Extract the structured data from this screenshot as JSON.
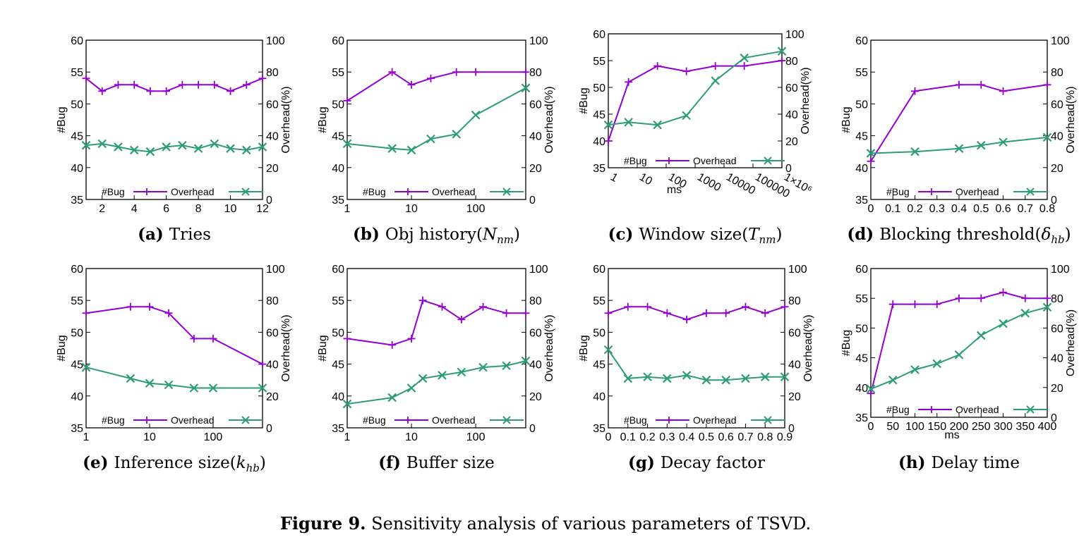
{
  "colors": {
    "bug": "#9400d3",
    "overhead": "#2e9c7a",
    "axis": "#000000"
  },
  "figure_caption": {
    "label": "Figure 9.",
    "text": "Sensitivity analysis of various parameters of TSVD."
  },
  "legend": {
    "bug": "#Bug",
    "overhead": "Overhead"
  },
  "ylabel_left": "#Bug",
  "ylabel_right": "Overhead(%)",
  "chart_data": [
    {
      "id": "a",
      "type": "line",
      "caption_label": "(a)",
      "caption": "Tries",
      "xscale": "linear",
      "xlim": [
        1,
        12
      ],
      "xticks": [
        "2",
        "4",
        "6",
        "8",
        "10",
        "12"
      ],
      "xtick_values": [
        2,
        4,
        6,
        8,
        10,
        12
      ],
      "ylim_left": [
        35,
        60
      ],
      "ylim_right": [
        0,
        100
      ],
      "yticks_left": [
        "35",
        "40",
        "45",
        "50",
        "55",
        "60"
      ],
      "yticks_right": [
        "0",
        "20",
        "40",
        "60",
        "80",
        "100"
      ],
      "series": [
        {
          "name": "#Bug",
          "axis": "left",
          "x": [
            1,
            2,
            3,
            4,
            5,
            6,
            7,
            8,
            9,
            10,
            11,
            12
          ],
          "y": [
            54,
            52,
            53,
            53,
            52,
            52,
            53,
            53,
            53,
            52,
            53,
            54
          ]
        },
        {
          "name": "Overhead",
          "axis": "right",
          "x": [
            1,
            2,
            3,
            4,
            5,
            6,
            7,
            8,
            9,
            10,
            11,
            12
          ],
          "y": [
            34,
            35,
            33,
            31,
            30,
            33,
            34,
            32,
            35,
            32,
            31,
            33
          ]
        }
      ]
    },
    {
      "id": "b",
      "type": "line",
      "caption_label": "(b)",
      "caption": "Obj history",
      "caption_math": {
        "base": "N",
        "sub": "nm"
      },
      "xscale": "log",
      "xlim": [
        1,
        600
      ],
      "xticks": [
        "1",
        "10",
        "100"
      ],
      "xtick_values": [
        1,
        10,
        100
      ],
      "ylim_left": [
        35,
        60
      ],
      "ylim_right": [
        0,
        100
      ],
      "yticks_left": [
        "35",
        "40",
        "45",
        "50",
        "55",
        "60"
      ],
      "yticks_right": [
        "0",
        "20",
        "40",
        "60",
        "80",
        "100"
      ],
      "series": [
        {
          "name": "#Bug",
          "axis": "left",
          "x": [
            1,
            5,
            10,
            20,
            50,
            100,
            600
          ],
          "y": [
            50.5,
            55,
            53,
            54,
            55,
            55,
            55
          ]
        },
        {
          "name": "Overhead",
          "axis": "right",
          "x": [
            1,
            5,
            10,
            20,
            50,
            100,
            600
          ],
          "y": [
            35,
            32,
            31,
            38,
            41,
            53,
            70
          ]
        }
      ]
    },
    {
      "id": "c",
      "type": "line",
      "caption_label": "(c)",
      "caption": "Window size",
      "caption_math": {
        "base": "T",
        "sub": "nm"
      },
      "xscale": "log",
      "xlim": [
        1,
        1000000
      ],
      "xticks": [
        "1",
        "10",
        "100",
        "1000",
        "10000",
        "100000",
        "1×10⁶"
      ],
      "xtick_values": [
        1,
        10,
        100,
        1000,
        10000,
        100000,
        1000000
      ],
      "xlabel": "ms",
      "ylim_left": [
        35,
        60
      ],
      "ylim_right": [
        0,
        100
      ],
      "yticks_left": [
        "35",
        "40",
        "45",
        "50",
        "55",
        "60"
      ],
      "yticks_right": [
        "0",
        "20",
        "40",
        "60",
        "80",
        "100"
      ],
      "series": [
        {
          "name": "#Bug",
          "axis": "left",
          "x": [
            1,
            5,
            50,
            500,
            5000,
            50000,
            1000000
          ],
          "y": [
            40,
            51,
            54,
            53,
            54,
            54,
            55
          ]
        },
        {
          "name": "Overhead",
          "axis": "right",
          "x": [
            1,
            5,
            50,
            500,
            5000,
            50000,
            1000000
          ],
          "y": [
            32,
            34,
            32,
            39,
            65,
            82,
            87
          ]
        }
      ]
    },
    {
      "id": "d",
      "type": "line",
      "caption_label": "(d)",
      "caption": "Blocking threshold",
      "caption_math": {
        "base": "δ",
        "sub": "hb"
      },
      "xscale": "linear",
      "xlim": [
        0,
        0.8
      ],
      "xticks": [
        "0",
        "0.1",
        "0.2",
        "0.3",
        "0.4",
        "0.5",
        "0.6",
        "0.7",
        "0.8"
      ],
      "xtick_values": [
        0,
        0.1,
        0.2,
        0.3,
        0.4,
        0.5,
        0.6,
        0.7,
        0.8
      ],
      "ylim_left": [
        35,
        60
      ],
      "ylim_right": [
        0,
        100
      ],
      "yticks_left": [
        "35",
        "40",
        "45",
        "50",
        "55",
        "60"
      ],
      "yticks_right": [
        "0",
        "20",
        "40",
        "60",
        "80",
        "100"
      ],
      "series": [
        {
          "name": "#Bug",
          "axis": "left",
          "x": [
            0,
            0.2,
            0.4,
            0.5,
            0.6,
            0.8
          ],
          "y": [
            41,
            52,
            53,
            53,
            52,
            53
          ]
        },
        {
          "name": "Overhead",
          "axis": "right",
          "x": [
            0,
            0.2,
            0.4,
            0.5,
            0.6,
            0.8
          ],
          "y": [
            29,
            30,
            32,
            34,
            36,
            39
          ]
        }
      ]
    },
    {
      "id": "e",
      "type": "line",
      "caption_label": "(e)",
      "caption": "Inference size",
      "caption_math": {
        "base": "k",
        "sub": "hb"
      },
      "xscale": "log",
      "xlim": [
        1,
        600
      ],
      "xticks": [
        "1",
        "10",
        "100"
      ],
      "xtick_values": [
        1,
        10,
        100
      ],
      "ylim_left": [
        35,
        60
      ],
      "ylim_right": [
        0,
        100
      ],
      "yticks_left": [
        "35",
        "40",
        "45",
        "50",
        "55",
        "60"
      ],
      "yticks_right": [
        "0",
        "20",
        "40",
        "60",
        "80",
        "100"
      ],
      "series": [
        {
          "name": "#Bug",
          "axis": "left",
          "x": [
            1,
            5,
            10,
            20,
            50,
            100,
            600
          ],
          "y": [
            53,
            54,
            54,
            53,
            49,
            49,
            45
          ]
        },
        {
          "name": "Overhead",
          "axis": "right",
          "x": [
            1,
            5,
            10,
            20,
            50,
            100,
            600
          ],
          "y": [
            38,
            31,
            28,
            27,
            25,
            25,
            25
          ]
        }
      ]
    },
    {
      "id": "f",
      "type": "line",
      "caption_label": "(f)",
      "caption": "Buffer size",
      "xscale": "log",
      "xlim": [
        1,
        600
      ],
      "xticks": [
        "1",
        "10",
        "100"
      ],
      "xtick_values": [
        1,
        10,
        100
      ],
      "ylim_left": [
        35,
        60
      ],
      "ylim_right": [
        0,
        100
      ],
      "yticks_left": [
        "35",
        "40",
        "45",
        "50",
        "55",
        "60"
      ],
      "yticks_right": [
        "0",
        "20",
        "40",
        "60",
        "80",
        "100"
      ],
      "series": [
        {
          "name": "#Bug",
          "axis": "left",
          "x": [
            1,
            5,
            10,
            15,
            30,
            60,
            130,
            300,
            600
          ],
          "y": [
            49,
            48,
            49,
            55,
            54,
            52,
            54,
            53,
            53
          ]
        },
        {
          "name": "Overhead",
          "axis": "right",
          "x": [
            1,
            5,
            10,
            15,
            30,
            60,
            130,
            300,
            600
          ],
          "y": [
            15,
            19,
            25,
            31,
            33,
            35,
            38,
            39,
            42
          ]
        }
      ]
    },
    {
      "id": "g",
      "type": "line",
      "caption_label": "(g)",
      "caption": "Decay factor",
      "xscale": "linear",
      "xlim": [
        0,
        0.9
      ],
      "xticks": [
        "0",
        "0.1",
        "0.2",
        "0.3",
        "0.4",
        "0.5",
        "0.6",
        "0.7",
        "0.8",
        "0.9"
      ],
      "xtick_values": [
        0,
        0.1,
        0.2,
        0.3,
        0.4,
        0.5,
        0.6,
        0.7,
        0.8,
        0.9
      ],
      "ylim_left": [
        35,
        60
      ],
      "ylim_right": [
        0,
        100
      ],
      "yticks_left": [
        "35",
        "40",
        "45",
        "50",
        "55",
        "60"
      ],
      "yticks_right": [
        "0",
        "20",
        "40",
        "60",
        "80",
        "100"
      ],
      "series": [
        {
          "name": "#Bug",
          "axis": "left",
          "x": [
            0,
            0.1,
            0.2,
            0.3,
            0.4,
            0.5,
            0.6,
            0.7,
            0.8,
            0.9
          ],
          "y": [
            53,
            54,
            54,
            53,
            52,
            53,
            53,
            54,
            53,
            54
          ]
        },
        {
          "name": "Overhead",
          "axis": "right",
          "x": [
            0,
            0.1,
            0.2,
            0.3,
            0.4,
            0.5,
            0.6,
            0.7,
            0.8,
            0.9
          ],
          "y": [
            49,
            31,
            32,
            31,
            33,
            30,
            30,
            31,
            32,
            32
          ]
        }
      ]
    },
    {
      "id": "h",
      "type": "line",
      "caption_label": "(h)",
      "caption": "Delay time",
      "xscale": "linear",
      "xlim": [
        0,
        400
      ],
      "xticks": [
        "0",
        "50",
        "100",
        "150",
        "200",
        "250",
        "300",
        "350",
        "400"
      ],
      "xtick_values": [
        0,
        50,
        100,
        150,
        200,
        250,
        300,
        350,
        400
      ],
      "xlabel": "ms",
      "ylim_left": [
        35,
        60
      ],
      "ylim_right": [
        0,
        100
      ],
      "yticks_left": [
        "35",
        "40",
        "45",
        "50",
        "55",
        "60"
      ],
      "yticks_right": [
        "0",
        "20",
        "40",
        "60",
        "80",
        "100"
      ],
      "series": [
        {
          "name": "#Bug",
          "axis": "left",
          "x": [
            0,
            50,
            100,
            150,
            200,
            250,
            300,
            350,
            400
          ],
          "y": [
            39,
            54,
            54,
            54,
            55,
            55,
            56,
            55,
            55
          ]
        },
        {
          "name": "Overhead",
          "axis": "right",
          "x": [
            0,
            50,
            100,
            150,
            200,
            250,
            300,
            350,
            400
          ],
          "y": [
            19,
            25,
            32,
            36,
            42,
            55,
            63,
            70,
            74
          ]
        }
      ]
    }
  ]
}
